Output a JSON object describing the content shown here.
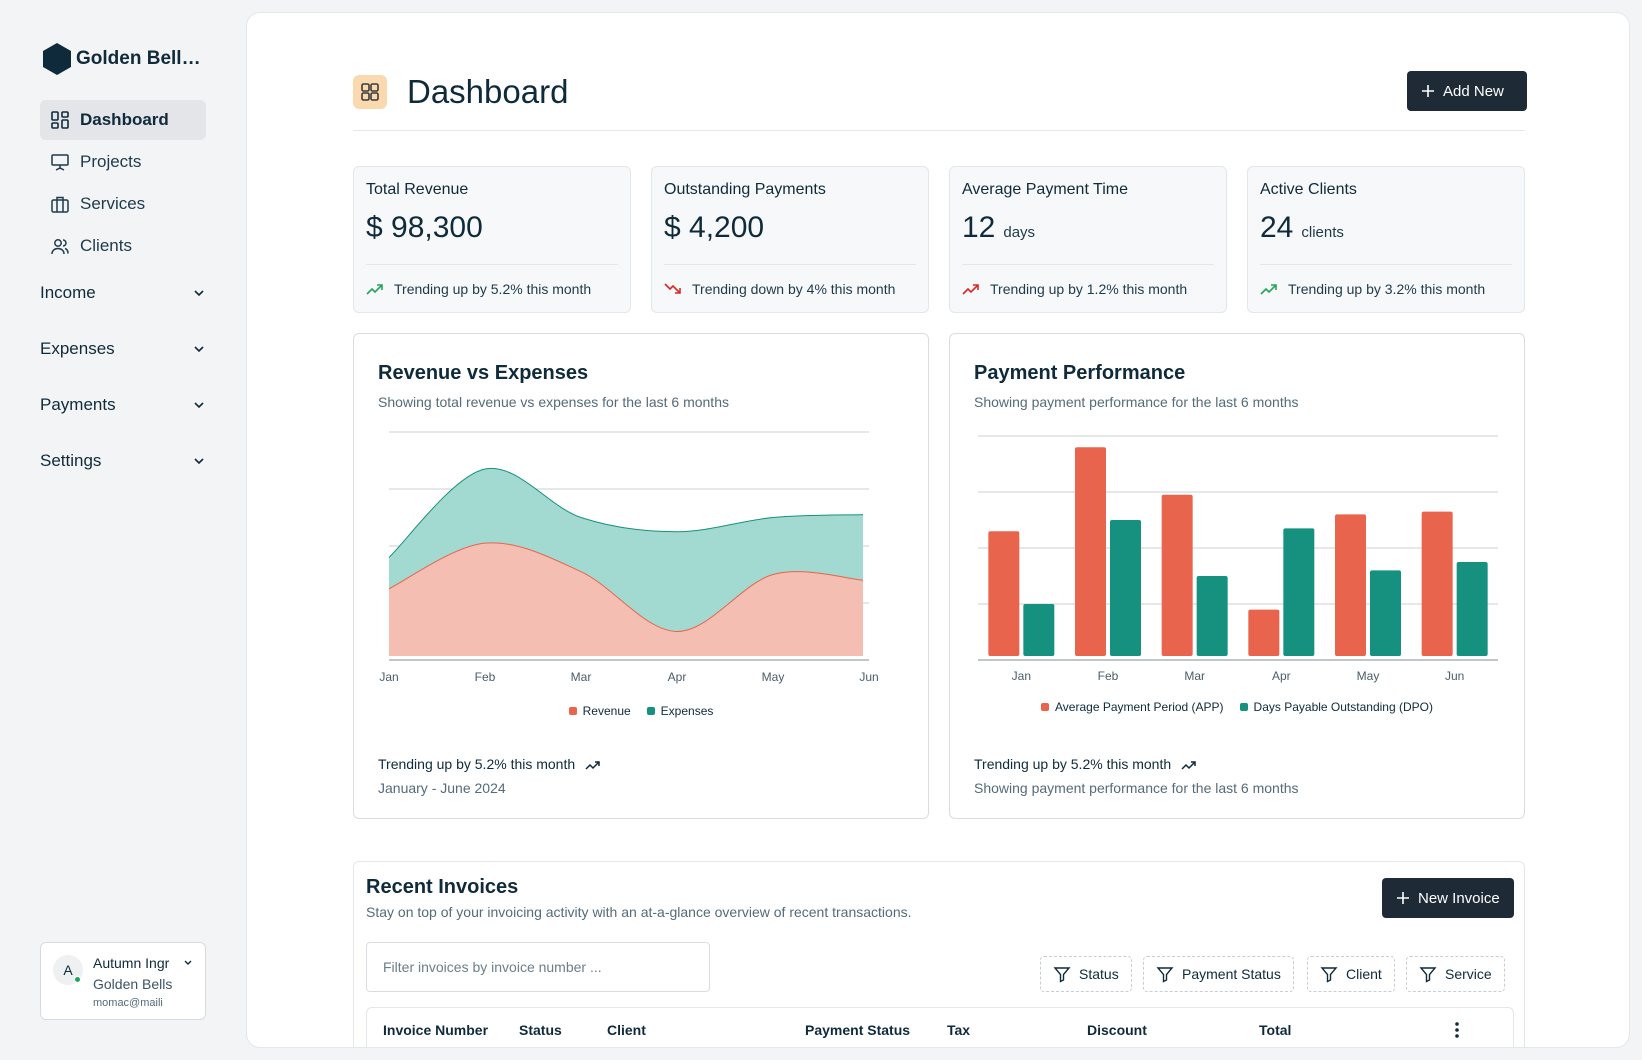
{
  "brand": {
    "name": "Golden Bells I..."
  },
  "nav": {
    "items": [
      {
        "label": "Dashboard",
        "icon": "dashboard-icon",
        "active": true
      },
      {
        "label": "Projects",
        "icon": "presentation-icon"
      },
      {
        "label": "Services",
        "icon": "briefcase-icon"
      },
      {
        "label": "Clients",
        "icon": "users-icon"
      }
    ],
    "groups": [
      "Income",
      "Expenses",
      "Payments",
      "Settings"
    ]
  },
  "user": {
    "initial": "A",
    "name": "Autumn Ingr",
    "org": "Golden Bells",
    "email": "momac@maili"
  },
  "header": {
    "title": "Dashboard",
    "add_label": "Add New"
  },
  "stats": [
    {
      "title": "Total Revenue",
      "value": "$ 98,300",
      "unit": "",
      "trend": "Trending up by 5.2% this month",
      "direction": "up",
      "color": "#22a55a"
    },
    {
      "title": "Outstanding Payments",
      "value": "$ 4,200",
      "unit": "",
      "trend": "Trending down by 4% this month",
      "direction": "down",
      "color": "#dc2626"
    },
    {
      "title": "Average Payment Time",
      "value": "12",
      "unit": "days",
      "trend": "Trending up by 1.2% this month",
      "direction": "up",
      "color": "#dc2626"
    },
    {
      "title": "Active Clients",
      "value": "24",
      "unit": "clients",
      "trend": "Trending up by 3.2% this month",
      "direction": "up",
      "color": "#22a55a"
    }
  ],
  "revenue_card": {
    "title": "Revenue vs Expenses",
    "subtitle": "Showing total revenue vs expenses for the last 6 months",
    "foot_trend": "Trending up by 5.2% this month",
    "foot_range": "January - June 2024"
  },
  "payment_card": {
    "title": "Payment Performance",
    "subtitle": "Showing payment performance for the last 6 months",
    "foot_trend": "Trending up by 5.2% this month",
    "foot_range": "Showing payment performance for the last 6 months"
  },
  "chart_data": [
    {
      "type": "area",
      "categories": [
        "Jan",
        "Feb",
        "Mar",
        "Apr",
        "May",
        "Jun"
      ],
      "ylim": [
        0,
        4
      ],
      "grid": true,
      "legend_placement": "bottom-center",
      "stacked": true,
      "series": [
        {
          "name": "Revenue",
          "color": "#e8644c",
          "fill": "#f4bfb2",
          "values": [
            1.25,
            2.05,
            1.55,
            0.5,
            1.5,
            1.4
          ]
        },
        {
          "name": "Expenses",
          "color": "#16917f",
          "fill": "#a2d9d0",
          "values": [
            0.55,
            1.3,
            0.95,
            1.75,
            1.0,
            1.15
          ]
        }
      ]
    },
    {
      "type": "bar",
      "categories": [
        "Jan",
        "Feb",
        "Mar",
        "Apr",
        "May",
        "Jun"
      ],
      "ylim": [
        0,
        4
      ],
      "grid": true,
      "legend_placement": "bottom-center",
      "series": [
        {
          "name": "Average Payment Period (APP)",
          "color": "#e8644c",
          "values": [
            2.3,
            3.8,
            2.95,
            0.9,
            2.6,
            2.65
          ]
        },
        {
          "name": "Days Payable Outstanding (DPO)",
          "color": "#16917f",
          "values": [
            1.0,
            2.5,
            1.5,
            2.35,
            1.6,
            1.75
          ]
        }
      ]
    }
  ],
  "invoices": {
    "title": "Recent Invoices",
    "subtitle": "Stay on top of your invoicing activity with an at-a-glance overview of recent transactions.",
    "new_label": "New Invoice",
    "filter_placeholder": "Filter invoices by invoice number ...",
    "filters": [
      "Status",
      "Payment Status",
      "Client",
      "Service"
    ],
    "columns": [
      "Invoice Number",
      "Status",
      "Client",
      "Payment Status",
      "Tax",
      "Discount",
      "Total"
    ]
  }
}
